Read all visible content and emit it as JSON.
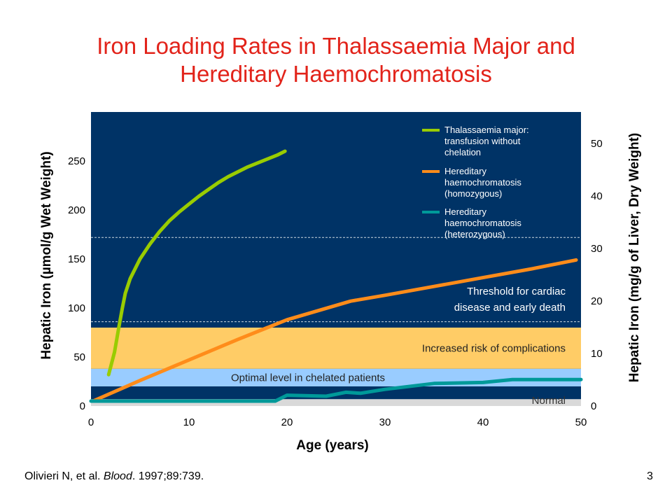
{
  "title": {
    "line1": "Iron Loading Rates in Thalassaemia Major and",
    "line2": "Hereditary Haemochromatosis"
  },
  "citation": {
    "prefix": "Olivieri N, et al. ",
    "journal": "Blood",
    "suffix": ". 1997;89:739."
  },
  "page_number": "3",
  "colors": {
    "plot_bg": "#003366",
    "thal": "#99cc00",
    "homo": "#ff8c1a",
    "hetero": "#009999",
    "band_increased": "#ffcc66",
    "band_optimal": "#99ccff",
    "band_normal": "#d9d9d9",
    "title": "#e2231a"
  },
  "chart_data": {
    "type": "line",
    "xlabel": "Age (years)",
    "ylabel": "Hepatic Iron (µmol/g Wet Weight)",
    "ylabel_right": "Hepatic Iron (mg/g of Liver, Dry Weight)",
    "xlim": [
      0,
      50
    ],
    "ylim": [
      0,
      300
    ],
    "ylim_right": [
      0,
      56
    ],
    "x_ticks": [
      "0",
      "10",
      "20",
      "30",
      "40",
      "50"
    ],
    "y_ticks": [
      "0",
      "50",
      "100",
      "150",
      "200",
      "250"
    ],
    "y_ticks_right": [
      "0",
      "10",
      "20",
      "30",
      "40",
      "50"
    ],
    "bands": [
      {
        "label": "Normal",
        "from": 0,
        "to": 7,
        "color": "#d9d9d9"
      },
      {
        "label": "Optimal level in chelated patients",
        "from": 20,
        "to": 38,
        "color": "#99ccff"
      },
      {
        "label": "Increased risk of complications",
        "from": 38,
        "to": 80,
        "color": "#ffcc66"
      }
    ],
    "threshold_lines": [
      {
        "value": 86
      },
      {
        "value": 172
      }
    ],
    "threshold_label": [
      "Threshold for cardiac",
      "disease and early death"
    ],
    "series": [
      {
        "name": "Thalassaemia major: transfusion without chelation",
        "legend_lines": [
          "Thalassaemia major:",
          "transfusion without",
          "chelation"
        ],
        "color": "#99cc00",
        "x": [
          1.8,
          2.4,
          2.8,
          3.2,
          3.5,
          4,
          5,
          6,
          7,
          8,
          9,
          10,
          11,
          12,
          13,
          14,
          15,
          16,
          17,
          18,
          19,
          19.8
        ],
        "y": [
          32,
          55,
          78,
          100,
          115,
          130,
          150,
          165,
          178,
          189,
          198,
          206,
          214,
          221,
          228,
          234,
          239,
          244,
          248,
          252,
          256,
          260
        ]
      },
      {
        "name": "Hereditary haemochromatosis (homozygous)",
        "legend_lines": [
          "Hereditary",
          "haemochromatosis",
          "(homozygous)"
        ],
        "color": "#ff8c1a",
        "x": [
          0.2,
          5,
          10,
          15,
          20,
          26.5,
          30,
          35,
          40,
          45,
          49.5
        ],
        "y": [
          5,
          26,
          47,
          68,
          88,
          107,
          113,
          122,
          131,
          140,
          149
        ]
      },
      {
        "name": "Hereditary haemochromatosis (heterozygous)",
        "legend_lines": [
          "Hereditary",
          "haemochromatosis",
          "(heterozygous)"
        ],
        "color": "#009999",
        "x": [
          0,
          5,
          10,
          15,
          18.8,
          20,
          24,
          26,
          27.5,
          30,
          35,
          40,
          43,
          50
        ],
        "y": [
          5,
          5,
          5,
          5,
          5,
          11,
          10,
          14,
          13,
          17,
          23,
          24,
          27,
          27
        ]
      }
    ]
  }
}
